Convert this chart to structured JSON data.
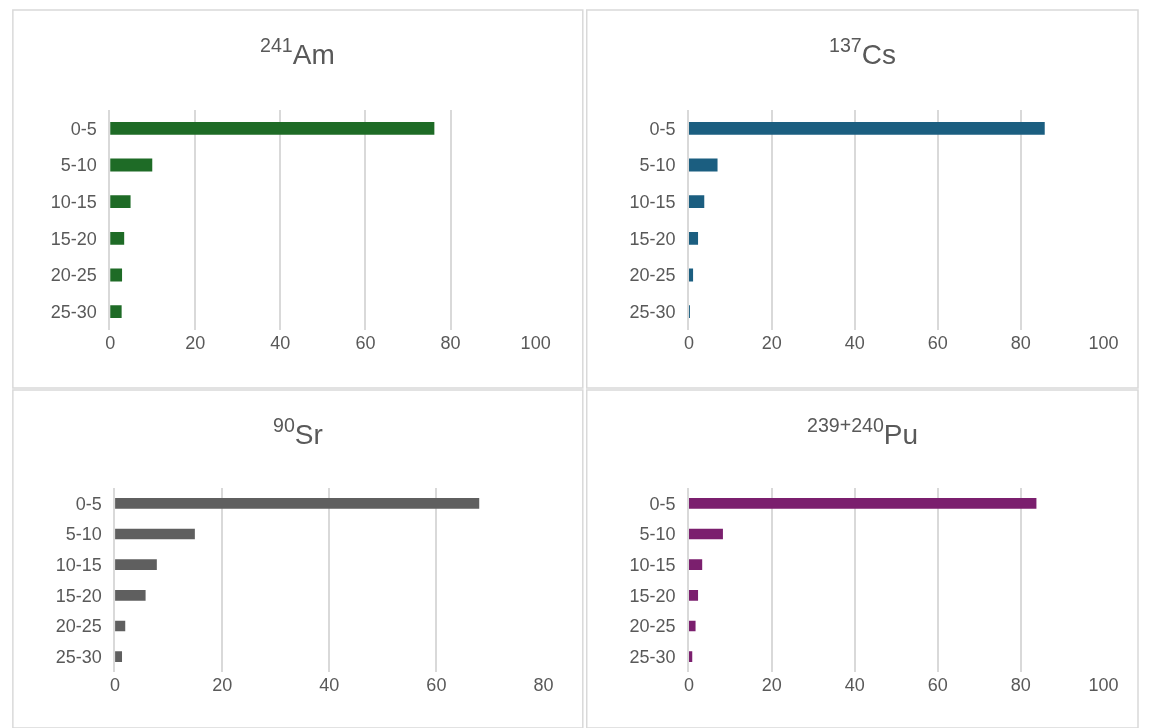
{
  "chart_data": [
    {
      "type": "bar",
      "orientation": "horizontal",
      "title": "$^{241}$Am",
      "categories": [
        "0-5",
        "5-10",
        "10-15",
        "15-20",
        "20-25",
        "25-30"
      ],
      "series": [
        {
          "color": "#1e6b26",
          "values": [
            76.2,
            9.9,
            4.8,
            3.3,
            2.8,
            2.7
          ]
        }
      ],
      "xlim": [
        0,
        100
      ],
      "xticks": [
        0,
        20,
        40,
        60,
        80,
        100
      ],
      "grid": "x"
    },
    {
      "type": "bar",
      "orientation": "horizontal",
      "title": "$^{137}$Cs",
      "categories": [
        "0-5",
        "5-10",
        "10-15",
        "15-20",
        "20-25",
        "25-30"
      ],
      "series": [
        {
          "color": "#1b5e80",
          "values": [
            85.8,
            6.9,
            3.7,
            2.2,
            1.0,
            0.2
          ]
        }
      ],
      "xlim": [
        0,
        100
      ],
      "xticks": [
        0,
        20,
        40,
        60,
        80,
        100
      ],
      "grid": "x"
    },
    {
      "type": "bar",
      "orientation": "horizontal",
      "title": "$^{90}$Sr",
      "categories": [
        "0-5",
        "5-10",
        "10-15",
        "15-20",
        "20-25",
        "25-30"
      ],
      "series": [
        {
          "color": "#5f5f5f",
          "values": [
            68.0,
            14.9,
            7.8,
            5.7,
            1.9,
            1.3
          ]
        }
      ],
      "xlim": [
        0,
        80
      ],
      "xticks": [
        0,
        20,
        40,
        60,
        80
      ],
      "grid": "x"
    },
    {
      "type": "bar",
      "orientation": "horizontal",
      "title": "$^{239+240}$Pu",
      "categories": [
        "0-5",
        "5-10",
        "10-15",
        "15-20",
        "20-25",
        "25-30"
      ],
      "series": [
        {
          "color": "#7b1f6e",
          "values": [
            83.8,
            8.2,
            3.2,
            2.2,
            1.6,
            0.8
          ]
        }
      ],
      "xlim": [
        0,
        100
      ],
      "xticks": [
        0,
        20,
        40,
        60,
        80,
        100
      ],
      "grid": "x"
    }
  ]
}
